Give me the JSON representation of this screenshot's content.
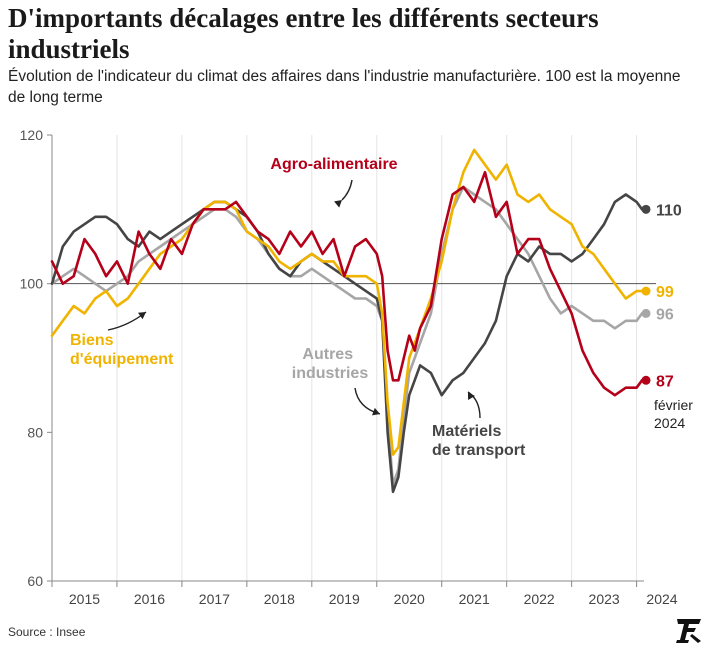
{
  "header": {
    "title": "D'importants décalages entre les différents secteurs industriels",
    "subtitle": "Évolution de l'indicateur du climat des affaires dans l'industrie manufacturière. 100 est la moyenne de long terme"
  },
  "footer": {
    "source": "Source : Insee"
  },
  "logo": {
    "name": "le-figaro-logo"
  },
  "colors": {
    "agro": "#b5001a",
    "biens": "#f0b400",
    "autres": "#a6a6a6",
    "materiels": "#454545",
    "reference": "#555555",
    "grid": "#e4e4e4",
    "axis": "#888888"
  },
  "chart_data": {
    "type": "line",
    "title": "D'importants décalages entre les différents secteurs industriels",
    "subtitle": "Évolution de l'indicateur du climat des affaires dans l'industrie manufacturière. 100 est la moyenne de long terme",
    "xlabel": "",
    "ylabel": "",
    "x_range": [
      "2015-01",
      "2024-02"
    ],
    "ylim": [
      60,
      120
    ],
    "yticks": [
      60,
      80,
      100,
      120
    ],
    "xticks": [
      "2015",
      "2016",
      "2017",
      "2018",
      "2019",
      "2020",
      "2021",
      "2022",
      "2023",
      "2024"
    ],
    "reference_line": 100,
    "grid": "vertical",
    "end_label_date": "février 2024",
    "series": [
      {
        "name": "Agro-alimentaire",
        "key": "agro",
        "end_label": "87",
        "points": [
          [
            "2015-01",
            103
          ],
          [
            "2015-03",
            100
          ],
          [
            "2015-05",
            101
          ],
          [
            "2015-07",
            106
          ],
          [
            "2015-09",
            104
          ],
          [
            "2015-11",
            101
          ],
          [
            "2016-01",
            103
          ],
          [
            "2016-03",
            100
          ],
          [
            "2016-05",
            107
          ],
          [
            "2016-07",
            104
          ],
          [
            "2016-09",
            102
          ],
          [
            "2016-11",
            106
          ],
          [
            "2017-01",
            104
          ],
          [
            "2017-03",
            108
          ],
          [
            "2017-05",
            110
          ],
          [
            "2017-07",
            110
          ],
          [
            "2017-09",
            110
          ],
          [
            "2017-11",
            111
          ],
          [
            "2018-01",
            109
          ],
          [
            "2018-03",
            107
          ],
          [
            "2018-05",
            106
          ],
          [
            "2018-07",
            104
          ],
          [
            "2018-09",
            107
          ],
          [
            "2018-11",
            105
          ],
          [
            "2019-01",
            107
          ],
          [
            "2019-03",
            104
          ],
          [
            "2019-05",
            106
          ],
          [
            "2019-07",
            101
          ],
          [
            "2019-09",
            105
          ],
          [
            "2019-11",
            106
          ],
          [
            "2020-01",
            104
          ],
          [
            "2020-02",
            101
          ],
          [
            "2020-03",
            91
          ],
          [
            "2020-04",
            87
          ],
          [
            "2020-05",
            87
          ],
          [
            "2020-06",
            90
          ],
          [
            "2020-07",
            93
          ],
          [
            "2020-08",
            91
          ],
          [
            "2020-09",
            94
          ],
          [
            "2020-11",
            97
          ],
          [
            "2021-01",
            106
          ],
          [
            "2021-03",
            112
          ],
          [
            "2021-05",
            113
          ],
          [
            "2021-07",
            111
          ],
          [
            "2021-09",
            115
          ],
          [
            "2021-11",
            109
          ],
          [
            "2022-01",
            111
          ],
          [
            "2022-03",
            104
          ],
          [
            "2022-05",
            106
          ],
          [
            "2022-07",
            106
          ],
          [
            "2022-09",
            102
          ],
          [
            "2022-11",
            99
          ],
          [
            "2023-01",
            96
          ],
          [
            "2023-03",
            91
          ],
          [
            "2023-05",
            88
          ],
          [
            "2023-07",
            86
          ],
          [
            "2023-09",
            85
          ],
          [
            "2023-11",
            86
          ],
          [
            "2024-01",
            86
          ],
          [
            "2024-02",
            87
          ]
        ]
      },
      {
        "name": "Biens d'équipement",
        "key": "biens",
        "end_label": "99",
        "points": [
          [
            "2015-01",
            93
          ],
          [
            "2015-03",
            95
          ],
          [
            "2015-05",
            97
          ],
          [
            "2015-07",
            96
          ],
          [
            "2015-09",
            98
          ],
          [
            "2015-11",
            99
          ],
          [
            "2016-01",
            97
          ],
          [
            "2016-03",
            98
          ],
          [
            "2016-05",
            100
          ],
          [
            "2016-07",
            102
          ],
          [
            "2016-09",
            104
          ],
          [
            "2016-11",
            105
          ],
          [
            "2017-01",
            106
          ],
          [
            "2017-03",
            108
          ],
          [
            "2017-05",
            110
          ],
          [
            "2017-07",
            111
          ],
          [
            "2017-09",
            111
          ],
          [
            "2017-11",
            110
          ],
          [
            "2018-01",
            107
          ],
          [
            "2018-03",
            106
          ],
          [
            "2018-05",
            105
          ],
          [
            "2018-07",
            103
          ],
          [
            "2018-09",
            102
          ],
          [
            "2018-11",
            103
          ],
          [
            "2019-01",
            104
          ],
          [
            "2019-03",
            103
          ],
          [
            "2019-05",
            103
          ],
          [
            "2019-07",
            101
          ],
          [
            "2019-09",
            101
          ],
          [
            "2019-11",
            101
          ],
          [
            "2020-01",
            100
          ],
          [
            "2020-02",
            96
          ],
          [
            "2020-03",
            84
          ],
          [
            "2020-04",
            77
          ],
          [
            "2020-05",
            78
          ],
          [
            "2020-06",
            84
          ],
          [
            "2020-07",
            90
          ],
          [
            "2020-08",
            92
          ],
          [
            "2020-09",
            94
          ],
          [
            "2020-11",
            98
          ],
          [
            "2021-01",
            103
          ],
          [
            "2021-03",
            110
          ],
          [
            "2021-05",
            115
          ],
          [
            "2021-07",
            118
          ],
          [
            "2021-09",
            116
          ],
          [
            "2021-11",
            114
          ],
          [
            "2022-01",
            116
          ],
          [
            "2022-03",
            112
          ],
          [
            "2022-05",
            111
          ],
          [
            "2022-07",
            112
          ],
          [
            "2022-09",
            110
          ],
          [
            "2022-11",
            109
          ],
          [
            "2023-01",
            108
          ],
          [
            "2023-03",
            105
          ],
          [
            "2023-05",
            104
          ],
          [
            "2023-07",
            102
          ],
          [
            "2023-09",
            100
          ],
          [
            "2023-11",
            98
          ],
          [
            "2024-01",
            99
          ],
          [
            "2024-02",
            99
          ]
        ]
      },
      {
        "name": "Autres industries",
        "key": "autres",
        "end_label": "96",
        "points": [
          [
            "2015-01",
            100
          ],
          [
            "2015-03",
            101
          ],
          [
            "2015-05",
            102
          ],
          [
            "2015-07",
            101
          ],
          [
            "2015-09",
            100
          ],
          [
            "2015-11",
            99
          ],
          [
            "2016-01",
            100
          ],
          [
            "2016-03",
            101
          ],
          [
            "2016-05",
            103
          ],
          [
            "2016-07",
            104
          ],
          [
            "2016-09",
            105
          ],
          [
            "2016-11",
            106
          ],
          [
            "2017-01",
            107
          ],
          [
            "2017-03",
            108
          ],
          [
            "2017-05",
            109
          ],
          [
            "2017-07",
            110
          ],
          [
            "2017-09",
            110
          ],
          [
            "2017-11",
            109
          ],
          [
            "2018-01",
            107
          ],
          [
            "2018-03",
            106
          ],
          [
            "2018-05",
            104
          ],
          [
            "2018-07",
            102
          ],
          [
            "2018-09",
            101
          ],
          [
            "2018-11",
            101
          ],
          [
            "2019-01",
            102
          ],
          [
            "2019-03",
            101
          ],
          [
            "2019-05",
            100
          ],
          [
            "2019-07",
            99
          ],
          [
            "2019-09",
            98
          ],
          [
            "2019-11",
            98
          ],
          [
            "2020-01",
            97
          ],
          [
            "2020-02",
            95
          ],
          [
            "2020-03",
            82
          ],
          [
            "2020-04",
            73
          ],
          [
            "2020-05",
            75
          ],
          [
            "2020-06",
            82
          ],
          [
            "2020-07",
            88
          ],
          [
            "2020-08",
            90
          ],
          [
            "2020-09",
            92
          ],
          [
            "2020-11",
            96
          ],
          [
            "2021-01",
            104
          ],
          [
            "2021-03",
            110
          ],
          [
            "2021-05",
            113
          ],
          [
            "2021-07",
            112
          ],
          [
            "2021-09",
            111
          ],
          [
            "2021-11",
            110
          ],
          [
            "2022-01",
            108
          ],
          [
            "2022-03",
            106
          ],
          [
            "2022-05",
            104
          ],
          [
            "2022-07",
            101
          ],
          [
            "2022-09",
            98
          ],
          [
            "2022-11",
            96
          ],
          [
            "2023-01",
            97
          ],
          [
            "2023-03",
            96
          ],
          [
            "2023-05",
            95
          ],
          [
            "2023-07",
            95
          ],
          [
            "2023-09",
            94
          ],
          [
            "2023-11",
            95
          ],
          [
            "2024-01",
            95
          ],
          [
            "2024-02",
            96
          ]
        ]
      },
      {
        "name": "Matériels de transport",
        "key": "materiels",
        "end_label": "110",
        "points": [
          [
            "2015-01",
            100
          ],
          [
            "2015-03",
            105
          ],
          [
            "2015-05",
            107
          ],
          [
            "2015-07",
            108
          ],
          [
            "2015-09",
            109
          ],
          [
            "2015-11",
            109
          ],
          [
            "2016-01",
            108
          ],
          [
            "2016-03",
            106
          ],
          [
            "2016-05",
            105
          ],
          [
            "2016-07",
            107
          ],
          [
            "2016-09",
            106
          ],
          [
            "2016-11",
            107
          ],
          [
            "2017-01",
            108
          ],
          [
            "2017-03",
            109
          ],
          [
            "2017-05",
            110
          ],
          [
            "2017-07",
            111
          ],
          [
            "2017-09",
            111
          ],
          [
            "2017-11",
            110
          ],
          [
            "2018-01",
            109
          ],
          [
            "2018-03",
            107
          ],
          [
            "2018-05",
            104
          ],
          [
            "2018-07",
            102
          ],
          [
            "2018-09",
            101
          ],
          [
            "2018-11",
            103
          ],
          [
            "2019-01",
            104
          ],
          [
            "2019-03",
            103
          ],
          [
            "2019-05",
            102
          ],
          [
            "2019-07",
            101
          ],
          [
            "2019-09",
            100
          ],
          [
            "2019-11",
            99
          ],
          [
            "2020-01",
            98
          ],
          [
            "2020-02",
            95
          ],
          [
            "2020-03",
            80
          ],
          [
            "2020-04",
            72
          ],
          [
            "2020-05",
            74
          ],
          [
            "2020-06",
            80
          ],
          [
            "2020-07",
            85
          ],
          [
            "2020-08",
            87
          ],
          [
            "2020-09",
            89
          ],
          [
            "2020-11",
            88
          ],
          [
            "2021-01",
            85
          ],
          [
            "2021-03",
            87
          ],
          [
            "2021-05",
            88
          ],
          [
            "2021-07",
            90
          ],
          [
            "2021-09",
            92
          ],
          [
            "2021-11",
            95
          ],
          [
            "2022-01",
            101
          ],
          [
            "2022-03",
            104
          ],
          [
            "2022-05",
            103
          ],
          [
            "2022-07",
            105
          ],
          [
            "2022-09",
            104
          ],
          [
            "2022-11",
            104
          ],
          [
            "2023-01",
            103
          ],
          [
            "2023-03",
            104
          ],
          [
            "2023-05",
            106
          ],
          [
            "2023-07",
            108
          ],
          [
            "2023-09",
            111
          ],
          [
            "2023-11",
            112
          ],
          [
            "2024-01",
            111
          ],
          [
            "2024-02",
            110
          ]
        ]
      }
    ],
    "annotations": [
      {
        "text": "Agro-alimentaire",
        "series": "agro"
      },
      {
        "text": "Biens d'équipement",
        "series": "biens"
      },
      {
        "text": "Autres industries",
        "series": "autres"
      },
      {
        "text": "Matériels de transport",
        "series": "materiels"
      }
    ]
  }
}
